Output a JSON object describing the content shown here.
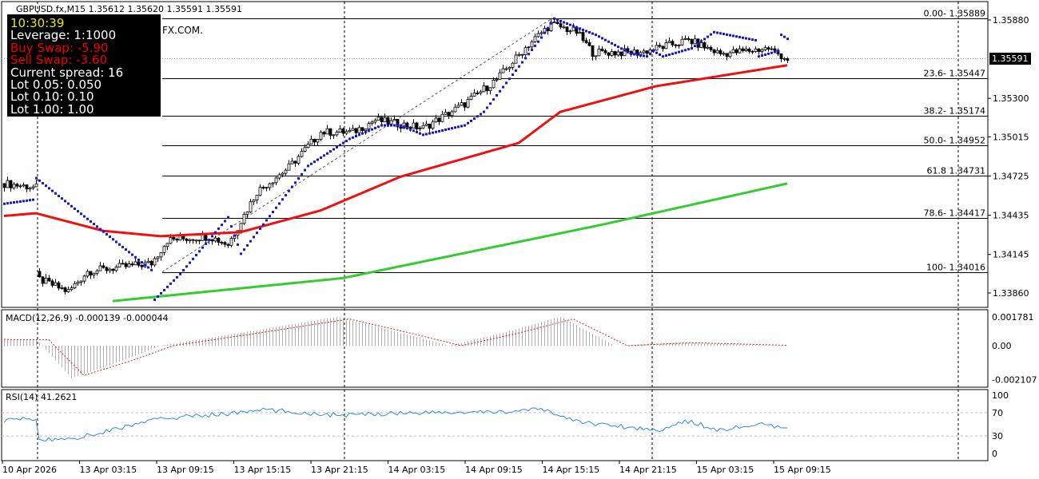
{
  "header": {
    "title": "GBPUSD.fx,M15  1.35612 1.35620 1.35591 1.35591",
    "watermark": "FX.COM."
  },
  "info_panel": {
    "time": "10:30:39",
    "leverage": "Leverage:  1:1000",
    "buy_swap": "Buy Swap: -5.90",
    "sell_swap": "Sell Swap: -3.60",
    "spread": "Current spread: 16",
    "lot1": "Lot 0.05:  0.050",
    "lot2": "Lot 0.10:  0.10",
    "lot3": "Lot 1.00:  1.00"
  },
  "current_price": "1.35591",
  "colors": {
    "ma_fast": "#ee1111",
    "ma_slow": "#33cc33",
    "sar": "#1515dd",
    "rsi": "#2f8ae8",
    "macd_signal": "#dd2222",
    "macd_hist": "#b0b0b0"
  },
  "chart_data": [
    {
      "type": "candlestick",
      "title": "GBPUSD.fx,M15",
      "price_ticks": [
        "1.35880",
        "1.35300",
        "1.35015",
        "1.34725",
        "1.34435",
        "1.34145",
        "1.33860"
      ],
      "ylim": [
        1.338,
        1.3596
      ],
      "x_labels": [
        "10 Apr 2026",
        "13 Apr 03:15",
        "13 Apr 09:15",
        "13 Apr 15:15",
        "13 Apr 21:15",
        "14 Apr 03:15",
        "14 Apr 09:15",
        "14 Apr 15:15",
        "14 Apr 21:15",
        "15 Apr 03:15",
        "15 Apr 09:15"
      ],
      "close_keypoints": [
        [
          0,
          1.3467
        ],
        [
          10,
          1.3464
        ],
        [
          11,
          1.3396
        ],
        [
          20,
          1.3387
        ],
        [
          26,
          1.3402
        ],
        [
          46,
          1.3408
        ],
        [
          51,
          1.3425
        ],
        [
          64,
          1.3428
        ],
        [
          70,
          1.3422
        ],
        [
          79,
          1.3461
        ],
        [
          89,
          1.3479
        ],
        [
          99,
          1.3505
        ],
        [
          109,
          1.3505
        ],
        [
          116,
          1.3514
        ],
        [
          131,
          1.3508
        ],
        [
          144,
          1.3526
        ],
        [
          154,
          1.3544
        ],
        [
          164,
          1.357
        ],
        [
          171,
          1.3585
        ],
        [
          179,
          1.3579
        ],
        [
          184,
          1.3564
        ],
        [
          199,
          1.3564
        ],
        [
          214,
          1.3573
        ],
        [
          224,
          1.3563
        ],
        [
          239,
          1.3567
        ],
        [
          245,
          1.3559
        ]
      ],
      "ma_red_keypoints": [
        [
          0,
          1.3443
        ],
        [
          10,
          1.3445
        ],
        [
          31,
          1.3432
        ],
        [
          49,
          1.3428
        ],
        [
          74,
          1.3431
        ],
        [
          99,
          1.3447
        ],
        [
          124,
          1.3472
        ],
        [
          161,
          1.3497
        ],
        [
          174,
          1.352
        ],
        [
          204,
          1.3539
        ],
        [
          245,
          1.35545
        ]
      ],
      "ma_green_keypoints": [
        [
          34,
          1.338
        ],
        [
          106,
          1.3397
        ],
        [
          186,
          1.3436
        ],
        [
          245,
          1.3467
        ]
      ],
      "sar_keypoints": [
        [
          0,
          1.3452
        ],
        [
          9,
          1.3455
        ],
        [
          10,
          1.3471
        ],
        [
          46,
          1.3403
        ],
        [
          47,
          1.3381
        ],
        [
          55,
          1.34
        ],
        [
          70,
          1.3442
        ],
        [
          74,
          1.3415
        ],
        [
          95,
          1.348
        ],
        [
          108,
          1.35
        ],
        [
          118,
          1.351
        ],
        [
          124,
          1.351
        ],
        [
          131,
          1.3503
        ],
        [
          144,
          1.351
        ],
        [
          150,
          1.352
        ],
        [
          168,
          1.3575
        ],
        [
          172,
          1.3589
        ],
        [
          185,
          1.3577
        ],
        [
          196,
          1.3563
        ],
        [
          201,
          1.3561
        ],
        [
          203,
          1.3565
        ],
        [
          206,
          1.3561
        ],
        [
          215,
          1.3567
        ],
        [
          222,
          1.3579
        ],
        [
          235,
          1.3573
        ],
        [
          236,
          1.3561
        ],
        [
          242,
          1.3565
        ],
        [
          243,
          1.3577
        ],
        [
          245,
          1.3574
        ]
      ],
      "fibonacci": [
        {
          "label": "0.00- 1.35889",
          "price": 1.35889
        },
        {
          "label": "23.6- 1.35447",
          "price": 1.35447
        },
        {
          "label": "38.2- 1.35174",
          "price": 1.35174
        },
        {
          "label": "50.0- 1.34952",
          "price": 1.34952
        },
        {
          "label": "61.8 1.34731",
          "price": 1.34731
        },
        {
          "label": "78.6- 1.34417",
          "price": 1.34417
        },
        {
          "label": "100- 1.34016",
          "price": 1.34016
        }
      ]
    },
    {
      "type": "bar",
      "title": "MACD(12,26,9) -0.000139 -0.000044",
      "ticks": [
        "0.001781",
        "0.00",
        "-0.002107"
      ],
      "ylim": [
        -0.002107,
        0.001781
      ],
      "keypoints": [
        [
          0,
          0.0004
        ],
        [
          10,
          0.0004
        ],
        [
          21,
          -0.002
        ],
        [
          36,
          -0.001
        ],
        [
          49,
          0.0
        ],
        [
          74,
          0.0008
        ],
        [
          104,
          0.0018
        ],
        [
          124,
          0.0008
        ],
        [
          139,
          0.0
        ],
        [
          156,
          0.0008
        ],
        [
          174,
          0.0018
        ],
        [
          191,
          0.0
        ],
        [
          211,
          0.0002
        ],
        [
          245,
          0.0
        ]
      ]
    },
    {
      "type": "line",
      "title": "RSI(14) 41.2621",
      "ticks": [
        "100",
        "70",
        "30",
        "0"
      ],
      "ylim": [
        0,
        100
      ],
      "keypoints": [
        [
          0,
          57
        ],
        [
          10,
          60
        ],
        [
          11,
          22
        ],
        [
          24,
          28
        ],
        [
          49,
          60
        ],
        [
          74,
          70
        ],
        [
          81,
          75
        ],
        [
          106,
          65
        ],
        [
          124,
          70
        ],
        [
          149,
          70
        ],
        [
          169,
          75
        ],
        [
          179,
          55
        ],
        [
          204,
          40
        ],
        [
          214,
          55
        ],
        [
          224,
          40
        ],
        [
          236,
          50
        ],
        [
          245,
          41
        ]
      ]
    }
  ]
}
